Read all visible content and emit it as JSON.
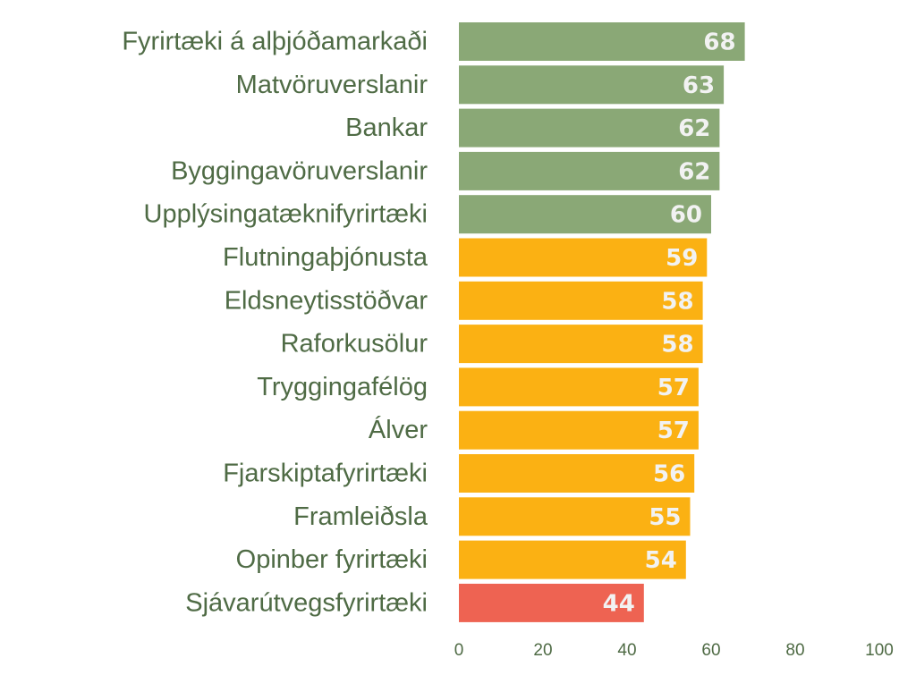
{
  "chart_data": {
    "type": "bar",
    "orientation": "horizontal",
    "categories": [
      "Fyrirtæki á alþjóðamarkaði",
      "Matvöruverslanir",
      "Bankar",
      "Byggingavöruverslanir",
      "Upplýsingatæknifyrirtæki",
      "Flutningaþjónusta",
      "Eldsneytisstöðvar",
      "Raforkusölur",
      "Tryggingafélög",
      "Álver",
      "Fjarskiptafyrirtæki",
      "Framleiðsla",
      "Opinber fyrirtæki",
      "Sjávarútvegsfyrirtæki"
    ],
    "values": [
      68,
      63,
      62,
      62,
      60,
      59,
      58,
      58,
      57,
      57,
      56,
      55,
      54,
      44
    ],
    "bar_colors": [
      "#8aa876",
      "#8aa876",
      "#8aa876",
      "#8aa876",
      "#8aa876",
      "#fbb113",
      "#fbb113",
      "#fbb113",
      "#fbb113",
      "#fbb113",
      "#fbb113",
      "#fbb113",
      "#fbb113",
      "#ee6352"
    ],
    "data_labels": true,
    "xlim": [
      0,
      100
    ],
    "xticks": [
      0,
      20,
      40,
      60,
      80,
      100
    ],
    "grid": false,
    "legend": "none",
    "title": "",
    "xlabel": "",
    "ylabel": ""
  },
  "colors": {
    "category_text": "#4f6b45",
    "value_text": "#f2f2f2",
    "high_group": "#8aa876",
    "mid_group": "#fbb113",
    "low_group": "#ee6352"
  }
}
